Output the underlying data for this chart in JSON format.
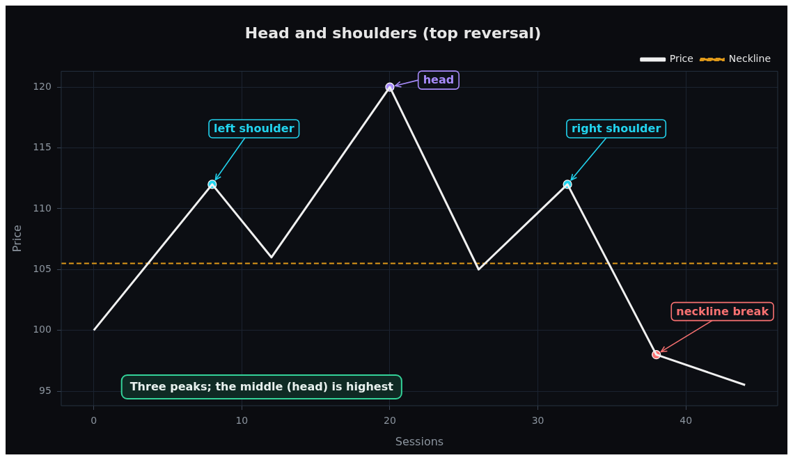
{
  "chart_data": {
    "type": "line",
    "title": "Head and shoulders (top reversal)",
    "xlabel": "Sessions",
    "ylabel": "Price",
    "x": [
      0,
      8,
      12,
      20,
      26,
      32,
      38,
      44
    ],
    "series": [
      {
        "name": "Price",
        "color": "#f0f0f0",
        "values": [
          100,
          112,
          106,
          120,
          105,
          112,
          98,
          95.5
        ]
      },
      {
        "type": "scatter",
        "marker": "circle",
        "x": [
          8,
          20,
          32,
          38
        ],
        "values": [
          112,
          120,
          112,
          98
        ],
        "colors": [
          "#22d3ee",
          "#a78bfa",
          "#22d3ee",
          "#f87171"
        ]
      }
    ],
    "xlim": [
      -2.2,
      46.2
    ],
    "xticks": [
      0,
      10,
      20,
      30,
      40
    ],
    "ylim": [
      93.8,
      121.3
    ],
    "yticks": [
      95,
      100,
      105,
      110,
      115,
      120
    ],
    "ref_lines": [
      {
        "axis": "y",
        "value": 105.5,
        "label": "Neckline",
        "color": "#e09a1a",
        "line_style": "dashed"
      }
    ],
    "annotations": [
      {
        "text": "left shoulder",
        "x": 8,
        "y": 112
      },
      {
        "text": "head",
        "x": 20,
        "y": 120
      },
      {
        "text": "right shoulder",
        "x": 32,
        "y": 112
      },
      {
        "text": "neckline break",
        "x": 38,
        "y": 98
      },
      "Three peaks; the middle (head) is highest"
    ],
    "grid": true,
    "legend": "top right",
    "line_style": "solid"
  }
}
